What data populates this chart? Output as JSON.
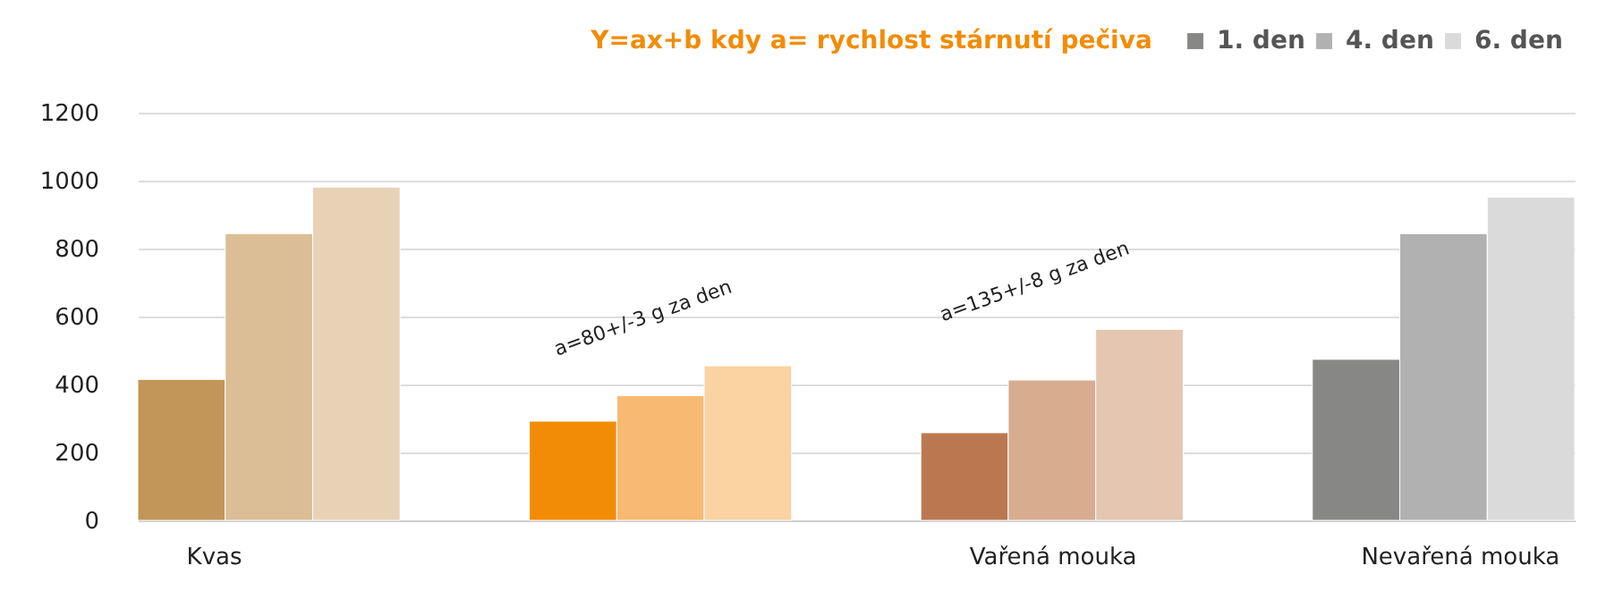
{
  "chart_data": {
    "type": "bar",
    "title": "Y=ax+b kdy a= rychlost stárnutí pečiva",
    "categories": [
      "Kvas",
      null,
      "Vařená mouka",
      "Nevařená mouka"
    ],
    "series": [
      {
        "name": "1. den",
        "color": "#878786",
        "colors": [
          "#c29659",
          "#f28c06",
          "#bb7850",
          "#878786"
        ],
        "values": [
          415,
          292,
          258,
          474
        ]
      },
      {
        "name": "4. den",
        "color": "#b1b1b1",
        "colors": [
          "#dbbe96",
          "#f8b972",
          "#d7ac8f",
          "#b1b1b1"
        ],
        "values": [
          844,
          367,
          413,
          844
        ]
      },
      {
        "name": "6. den",
        "color": "#dadada",
        "colors": [
          "#e8d2b6",
          "#fbd2a2",
          "#e4c6b1",
          "#dadada"
        ],
        "values": [
          981,
          455,
          562,
          951
        ]
      }
    ],
    "annotations": [
      "a=80+/-3 g za den",
      "a=135+/-8 g za den"
    ],
    "ylim": [
      0,
      1200
    ],
    "yticks": [
      0,
      200,
      400,
      600,
      800,
      1000,
      1200
    ],
    "grid": "y",
    "legend": "top right"
  }
}
